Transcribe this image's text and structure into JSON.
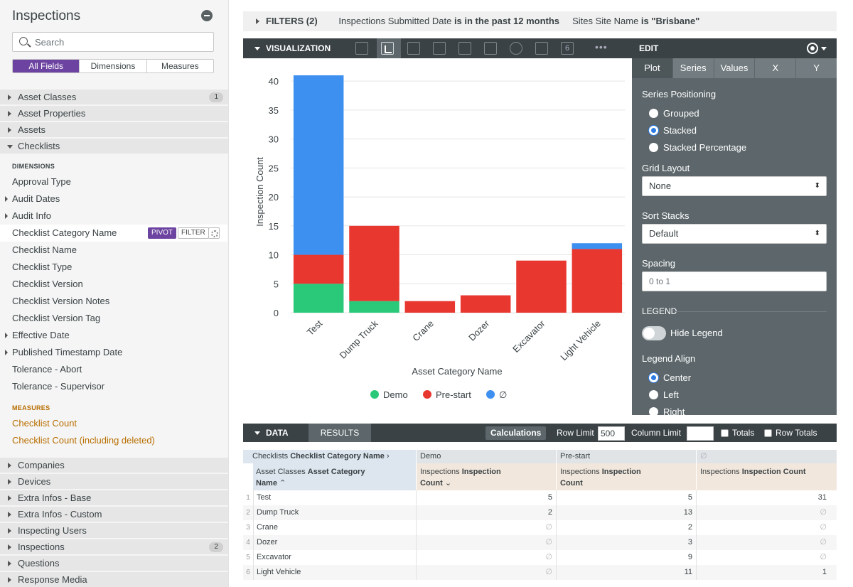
{
  "sidebar": {
    "title": "Inspections",
    "search_placeholder": "Search",
    "tabs": [
      "All Fields",
      "Dimensions",
      "Measures"
    ],
    "groups_top": [
      {
        "label": "Asset Classes",
        "badge": "1"
      },
      {
        "label": "Asset Properties",
        "badge": ""
      },
      {
        "label": "Assets",
        "badge": ""
      }
    ],
    "open_group": "Checklists",
    "dimensions_label": "DIMENSIONS",
    "dimensions": [
      {
        "label": "Approval Type",
        "expandable": false
      },
      {
        "label": "Audit Dates",
        "expandable": true
      },
      {
        "label": "Audit Info",
        "expandable": true
      },
      {
        "label": "Checklist Category Name",
        "expandable": false
      },
      {
        "label": "Checklist Name",
        "expandable": false
      },
      {
        "label": "Checklist Type",
        "expandable": false
      },
      {
        "label": "Checklist Version",
        "expandable": false
      },
      {
        "label": "Checklist Version Notes",
        "expandable": false
      },
      {
        "label": "Checklist Version Tag",
        "expandable": false
      },
      {
        "label": "Effective Date",
        "expandable": true
      },
      {
        "label": "Published Timestamp Date",
        "expandable": true
      },
      {
        "label": "Tolerance - Abort",
        "expandable": false
      },
      {
        "label": "Tolerance - Supervisor",
        "expandable": false
      }
    ],
    "pivot_label": "PIVOT",
    "filter_label": "FILTER",
    "measures_label": "MEASURES",
    "measures": [
      "Checklist Count",
      "Checklist Count (including deleted)"
    ],
    "groups_bottom": [
      {
        "label": "Companies",
        "badge": ""
      },
      {
        "label": "Devices",
        "badge": ""
      },
      {
        "label": "Extra Infos - Base",
        "badge": ""
      },
      {
        "label": "Extra Infos - Custom",
        "badge": ""
      },
      {
        "label": "Inspecting Users",
        "badge": ""
      },
      {
        "label": "Inspections",
        "badge": "2"
      },
      {
        "label": "Questions",
        "badge": ""
      },
      {
        "label": "Response Media",
        "badge": ""
      }
    ]
  },
  "filters": {
    "title": "FILTERS (2)",
    "f1_field": "Inspections Submitted Date",
    "f1_cond": "is in the past 12 months",
    "f2_field": "Sites Site Name",
    "f2_cond": "is \"Brisbane\""
  },
  "viz": {
    "title": "VISUALIZATION",
    "more": "•••",
    "icon_6": "6"
  },
  "chart_data": {
    "type": "bar",
    "stacked": true,
    "categories": [
      "Test",
      "Dump Truck",
      "Crane",
      "Dozer",
      "Excavator",
      "Light Vehicle"
    ],
    "series": [
      {
        "name": "Demo",
        "color": "#2ac97a",
        "values": [
          5,
          2,
          null,
          null,
          null,
          null
        ]
      },
      {
        "name": "Pre-start",
        "color": "#e8372f",
        "values": [
          5,
          13,
          2,
          3,
          9,
          11
        ]
      },
      {
        "name": "∅",
        "color": "#3d8ff0",
        "values": [
          31,
          null,
          null,
          null,
          null,
          1
        ]
      }
    ],
    "xlabel": "Asset Category Name",
    "ylabel": "Inspection Count",
    "yticks": [
      0,
      5,
      10,
      15,
      20,
      25,
      30,
      35,
      40
    ],
    "ylim": [
      0,
      41
    ],
    "grid": true,
    "legend": "bottom-center"
  },
  "edit": {
    "title": "EDIT",
    "tabs": [
      "Plot",
      "Series",
      "Values",
      "X",
      "Y"
    ],
    "series_positioning_label": "Series Positioning",
    "positioning_options": [
      "Grouped",
      "Stacked",
      "Stacked Percentage"
    ],
    "positioning_selected": "Stacked",
    "grid_layout_label": "Grid Layout",
    "grid_layout_value": "None",
    "sort_stacks_label": "Sort Stacks",
    "sort_stacks_value": "Default",
    "spacing_label": "Spacing",
    "spacing_placeholder": "0 to 1",
    "legend_label": "LEGEND",
    "hide_legend_label": "Hide Legend",
    "legend_align_label": "Legend Align",
    "legend_align_options": [
      "Center",
      "Left",
      "Right"
    ],
    "legend_align_selected": "Center"
  },
  "data_bar": {
    "title": "DATA",
    "results_tab": "RESULTS",
    "calculations": "Calculations",
    "row_limit_label": "Row Limit",
    "row_limit": "500",
    "column_limit_label": "Column Limit",
    "column_limit": "",
    "totals_label": "Totals",
    "row_totals_label": "Row Totals"
  },
  "table": {
    "pivot_header_prefix": "Checklists ",
    "pivot_header_field": "Checklist Category Name",
    "pivot_values": [
      "Demo",
      "Pre-start",
      "∅"
    ],
    "dim_prefix": "Asset Classes ",
    "dim_field_l1": "Asset Category",
    "dim_field_l2": "Name",
    "measure_prefix": "Inspections ",
    "measure_l1": "Inspection",
    "measure_l2": "Count",
    "measure_full": "Inspection Count",
    "rows": [
      {
        "n": "1",
        "name": "Test",
        "demo": "5",
        "prestart": "5",
        "none": "31"
      },
      {
        "n": "2",
        "name": "Dump Truck",
        "demo": "2",
        "prestart": "13",
        "none": "∅"
      },
      {
        "n": "3",
        "name": "Crane",
        "demo": "∅",
        "prestart": "2",
        "none": "∅"
      },
      {
        "n": "4",
        "name": "Dozer",
        "demo": "∅",
        "prestart": "3",
        "none": "∅"
      },
      {
        "n": "5",
        "name": "Excavator",
        "demo": "∅",
        "prestart": "9",
        "none": "∅"
      },
      {
        "n": "6",
        "name": "Light Vehicle",
        "demo": "∅",
        "prestart": "11",
        "none": "1"
      }
    ]
  }
}
